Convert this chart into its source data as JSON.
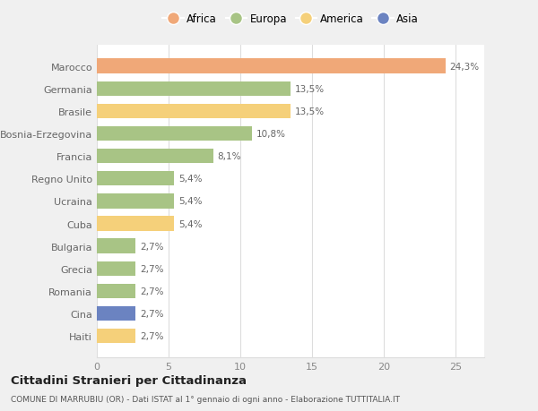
{
  "categories": [
    "Haiti",
    "Cina",
    "Romania",
    "Grecia",
    "Bulgaria",
    "Cuba",
    "Ucraina",
    "Regno Unito",
    "Francia",
    "Bosnia-Erzegovina",
    "Brasile",
    "Germania",
    "Marocco"
  ],
  "values": [
    2.7,
    2.7,
    2.7,
    2.7,
    2.7,
    5.4,
    5.4,
    5.4,
    8.1,
    10.8,
    13.5,
    13.5,
    24.3
  ],
  "colors": [
    "#f5d07a",
    "#6b83c1",
    "#a8c485",
    "#a8c485",
    "#a8c485",
    "#f5d07a",
    "#a8c485",
    "#a8c485",
    "#a8c485",
    "#a8c485",
    "#f5d07a",
    "#a8c485",
    "#f0a878"
  ],
  "labels": [
    "2,7%",
    "2,7%",
    "2,7%",
    "2,7%",
    "2,7%",
    "5,4%",
    "5,4%",
    "5,4%",
    "8,1%",
    "10,8%",
    "13,5%",
    "13,5%",
    "24,3%"
  ],
  "legend": [
    {
      "label": "Africa",
      "color": "#f0a878"
    },
    {
      "label": "Europa",
      "color": "#a8c485"
    },
    {
      "label": "America",
      "color": "#f5d07a"
    },
    {
      "label": "Asia",
      "color": "#6b83c1"
    }
  ],
  "xlim": [
    0,
    27
  ],
  "xticks": [
    0,
    5,
    10,
    15,
    20,
    25
  ],
  "title": "Cittadini Stranieri per Cittadinanza",
  "subtitle": "COMUNE DI MARRUBIU (OR) - Dati ISTAT al 1° gennaio di ogni anno - Elaborazione TUTTITALIA.IT",
  "figure_bg": "#f0f0f0",
  "plot_bg": "#ffffff",
  "grid_color": "#dddddd",
  "label_color": "#666666",
  "tick_color": "#888888"
}
